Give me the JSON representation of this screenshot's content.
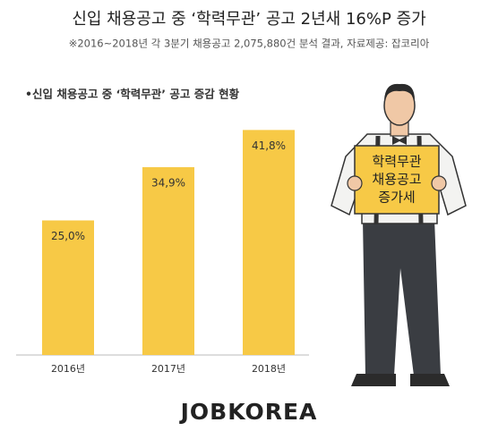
{
  "chart_data": {
    "type": "bar",
    "title": "신입 채용공고 중 ‘학력무관’ 공고 2년새 16%P 증가",
    "subtitle": "※2016~2018년 각 3분기 채용공고 2,075,880건 분석 결과,  자료제공: 잡코리아",
    "chart_title": "•신입 채용공고 중 ‘학력무관’ 공고 증감 현황",
    "categories": [
      "2016년",
      "2017년",
      "2018년"
    ],
    "values": [
      25.0,
      34.9,
      41.8
    ],
    "value_labels": [
      "25,0%",
      "34,9%",
      "41,8%"
    ],
    "color": "#f7c946",
    "sign": [
      "학력무관",
      "채용공고",
      "증가세"
    ],
    "brand": "JOBKOREA"
  }
}
